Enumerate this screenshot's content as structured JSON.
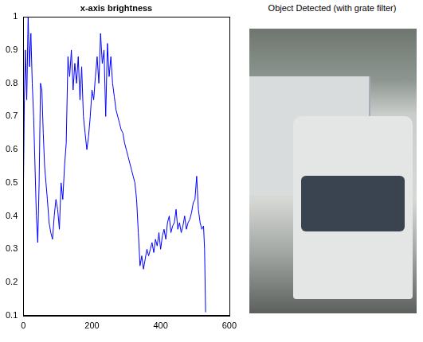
{
  "chart_data": {
    "type": "line",
    "title": "x-axis brightness",
    "color": "#0000ff",
    "x": [
      0,
      3,
      6,
      10,
      14,
      18,
      22,
      26,
      30,
      34,
      38,
      42,
      46,
      50,
      54,
      58,
      62,
      66,
      70,
      75,
      80,
      85,
      90,
      95,
      100,
      105,
      110,
      115,
      120,
      125,
      130,
      135,
      140,
      145,
      150,
      155,
      160,
      165,
      170,
      175,
      180,
      185,
      190,
      195,
      200,
      205,
      210,
      215,
      220,
      225,
      230,
      235,
      240,
      245,
      250,
      255,
      260,
      265,
      270,
      275,
      280,
      285,
      290,
      295,
      300,
      305,
      310,
      315,
      320,
      325,
      330,
      335,
      340,
      345,
      350,
      355,
      360,
      365,
      370,
      375,
      380,
      385,
      390,
      395,
      400,
      405,
      410,
      415,
      420,
      425,
      430,
      435,
      440,
      445,
      450,
      455,
      460,
      465,
      470,
      475,
      480,
      485,
      490,
      495,
      500,
      505,
      510,
      515,
      520,
      525,
      528,
      531
    ],
    "values": [
      0.45,
      0.75,
      0.9,
      0.75,
      1.0,
      0.85,
      0.95,
      0.8,
      0.7,
      0.55,
      0.4,
      0.32,
      0.5,
      0.8,
      0.78,
      0.65,
      0.55,
      0.5,
      0.45,
      0.38,
      0.35,
      0.33,
      0.4,
      0.45,
      0.42,
      0.36,
      0.5,
      0.45,
      0.55,
      0.62,
      0.88,
      0.82,
      0.9,
      0.78,
      0.86,
      0.8,
      0.88,
      0.75,
      0.85,
      0.7,
      0.65,
      0.6,
      0.64,
      0.7,
      0.78,
      0.75,
      0.82,
      0.88,
      0.8,
      0.95,
      0.86,
      0.9,
      0.7,
      0.92,
      0.82,
      0.88,
      0.8,
      0.76,
      0.72,
      0.7,
      0.68,
      0.66,
      0.65,
      0.62,
      0.6,
      0.58,
      0.56,
      0.54,
      0.52,
      0.5,
      0.45,
      0.35,
      0.25,
      0.28,
      0.24,
      0.27,
      0.3,
      0.28,
      0.3,
      0.32,
      0.29,
      0.33,
      0.31,
      0.35,
      0.3,
      0.34,
      0.36,
      0.33,
      0.38,
      0.4,
      0.35,
      0.37,
      0.38,
      0.42,
      0.36,
      0.38,
      0.35,
      0.37,
      0.4,
      0.36,
      0.38,
      0.39,
      0.41,
      0.44,
      0.45,
      0.52,
      0.42,
      0.38,
      0.36,
      0.37,
      0.3,
      0.11
    ],
    "xlim": [
      0,
      600
    ],
    "xticks": [
      0,
      200,
      400,
      600
    ],
    "ylim": [
      0.1,
      1
    ],
    "yticks": [
      0.1,
      0.2,
      0.3,
      0.4,
      0.5,
      0.6,
      0.7,
      0.8,
      0.9,
      1
    ],
    "grid": false
  },
  "image_panel": {
    "title": "Object Detected (with grate filter)"
  }
}
